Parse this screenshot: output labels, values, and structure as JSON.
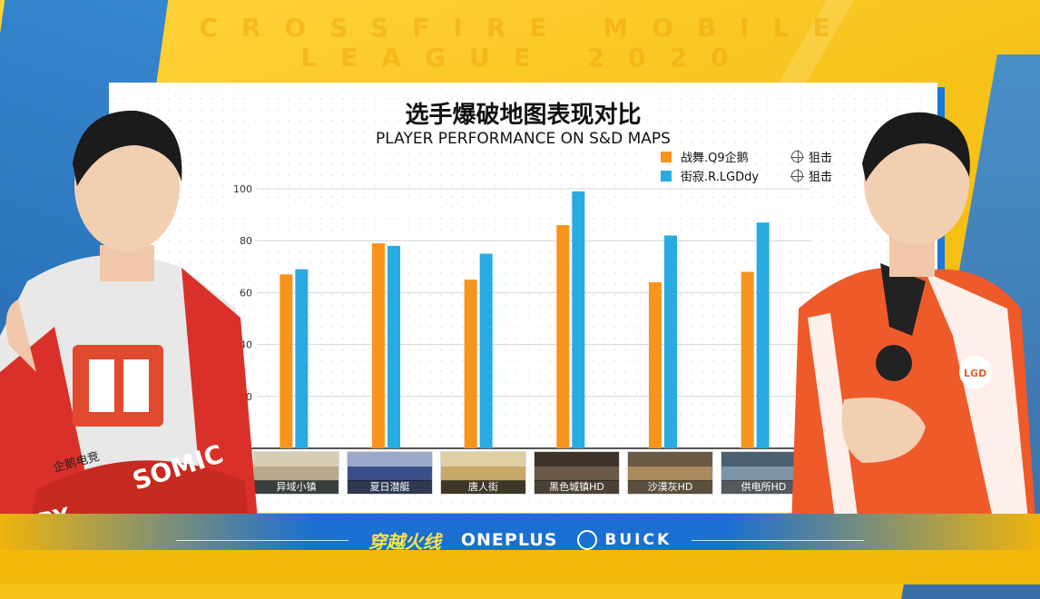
{
  "banner": "CROSSFIRE MOBILE LEAGUE 2020",
  "title": "选手爆破地图表现对比",
  "subtitle": "PLAYER PERFORMANCE ON S&D MAPS",
  "legend": [
    {
      "name": "战舞.Q9企鹅",
      "role": "狙击",
      "color": "#f7941d"
    },
    {
      "name": "街寂.R.LGDdy",
      "role": "狙击",
      "color": "#29abe2"
    }
  ],
  "chart_data": {
    "type": "bar",
    "title": "选手爆破地图表现对比",
    "subtitle": "PLAYER PERFORMANCE ON S&D MAPS",
    "categories": [
      "异域小镇",
      "夏日潜艇",
      "唐人街",
      "黑色城镇HD",
      "沙漠灰HD",
      "供电所HD"
    ],
    "series": [
      {
        "name": "战舞.Q9企鹅",
        "values": [
          67,
          79,
          65,
          86,
          64,
          68
        ],
        "color": "#f7941d"
      },
      {
        "name": "街寂.R.LGDdy",
        "values": [
          69,
          78,
          75,
          99,
          82,
          87
        ],
        "color": "#29abe2"
      }
    ],
    "ylim": [
      0,
      100
    ],
    "yticks": [
      "20",
      "40",
      "60",
      "80",
      "100"
    ],
    "grid": true,
    "legend_position": "top-right"
  },
  "footer": {
    "logo_cf": "穿越火线",
    "logo_oneplus": "ONEPLUS",
    "logo_buick": "BUICK"
  },
  "players": {
    "left_jersey_text": "SOMIC",
    "left_jersey_text2": "企鹅电竞",
    "left_jersey_text3": "ERRY",
    "right_badge": "LGD"
  }
}
